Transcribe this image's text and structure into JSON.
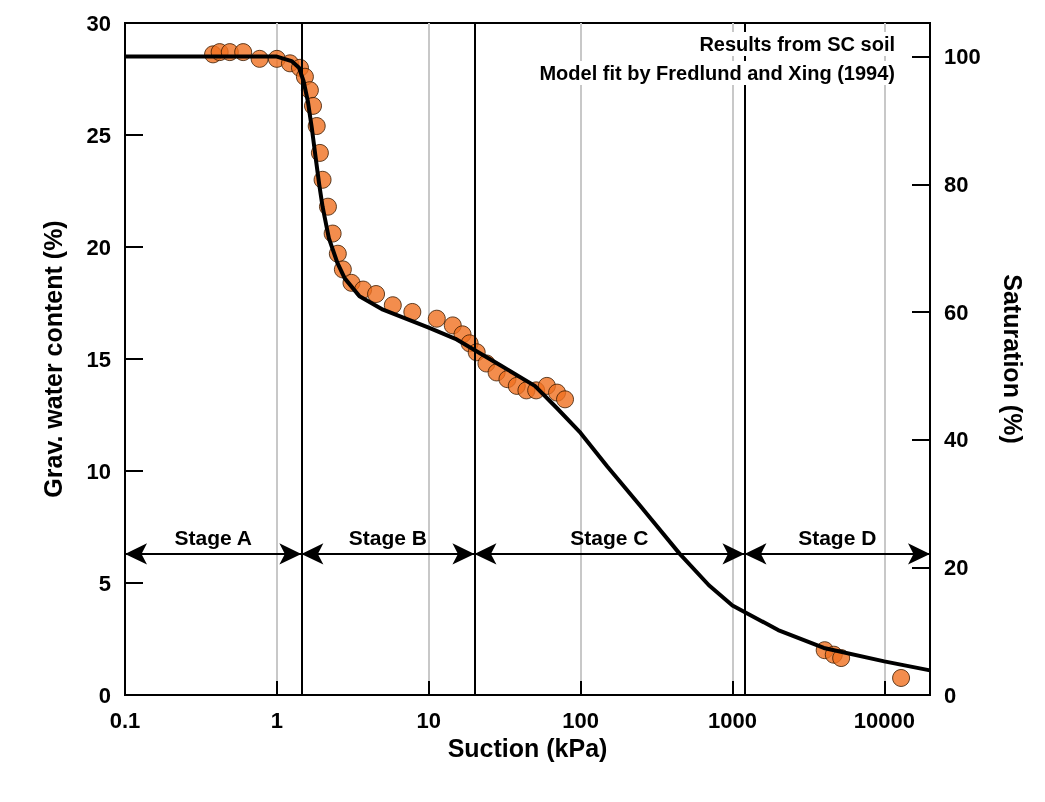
{
  "chart_data": {
    "type": "scatter",
    "xlabel": "Suction (kPa)",
    "ylabel": "Grav. water content (%)",
    "y2label": "Saturation (%)",
    "log": "x",
    "xlim": [
      0.1,
      20000
    ],
    "xticks": [
      0.1,
      1,
      10,
      100,
      1000,
      10000
    ],
    "ylim": [
      0,
      30
    ],
    "yticks": [
      0,
      5,
      10,
      15,
      20,
      25,
      30
    ],
    "y2lim": [
      0,
      105.3
    ],
    "y2ticks": [
      0,
      20,
      40,
      60,
      80,
      100
    ],
    "grid": "x",
    "marker": "circle",
    "ref_lines": [
      {
        "axis": "x",
        "value": 1.45,
        "color": "#000000"
      },
      {
        "axis": "x",
        "value": 20,
        "color": "#000000"
      },
      {
        "axis": "x",
        "value": 1200,
        "color": "#000000"
      }
    ],
    "annotations": [
      "Results from SC soil",
      "Model fit by Fredlund and Xing (1994)",
      "Stage A",
      "Stage B",
      "Stage C",
      "Stage D"
    ],
    "series": [
      {
        "color": "#f07020",
        "x": [
          0.38,
          0.42,
          0.49,
          0.6,
          0.77,
          1.0,
          1.22,
          1.42,
          1.53,
          1.65,
          1.73,
          1.83,
          1.92,
          2.0,
          2.17,
          2.33,
          2.52,
          2.72,
          3.1,
          3.7,
          4.5,
          5.8,
          7.8,
          11.3,
          14.4,
          16.7,
          18.6,
          20.7,
          24,
          28,
          33,
          38,
          44,
          51,
          60,
          70,
          79,
          4050,
          4650,
          5200,
          12900
        ],
        "values": [
          28.6,
          28.7,
          28.7,
          28.7,
          28.4,
          28.4,
          28.2,
          28.0,
          27.6,
          27.0,
          26.3,
          25.4,
          24.2,
          23.0,
          21.8,
          20.6,
          19.7,
          19.0,
          18.4,
          18.1,
          17.9,
          17.4,
          17.1,
          16.8,
          16.5,
          16.1,
          15.7,
          15.3,
          14.8,
          14.4,
          14.1,
          13.8,
          13.6,
          13.6,
          13.8,
          13.5,
          13.2,
          2.0,
          1.8,
          1.65,
          0.76
        ]
      },
      {
        "type": "line",
        "color": "#000000",
        "marker": "none",
        "x": [
          0.1,
          1,
          1.25,
          1.4,
          1.5,
          1.6,
          1.7,
          1.8,
          1.9,
          2.0,
          2.2,
          2.5,
          2.8,
          3.5,
          5,
          10,
          15,
          20,
          30,
          50,
          70,
          100,
          150,
          250,
          450,
          700,
          1000,
          2000,
          4000,
          10000,
          20000
        ],
        "values": [
          28.5,
          28.5,
          28.3,
          28.0,
          27.4,
          26.5,
          25.3,
          24.0,
          22.8,
          21.8,
          20.4,
          19.3,
          18.6,
          17.8,
          17.2,
          16.4,
          15.9,
          15.4,
          14.7,
          13.8,
          12.8,
          11.7,
          10.2,
          8.4,
          6.3,
          4.9,
          4.0,
          2.9,
          2.1,
          1.5,
          1.1
        ]
      }
    ]
  }
}
